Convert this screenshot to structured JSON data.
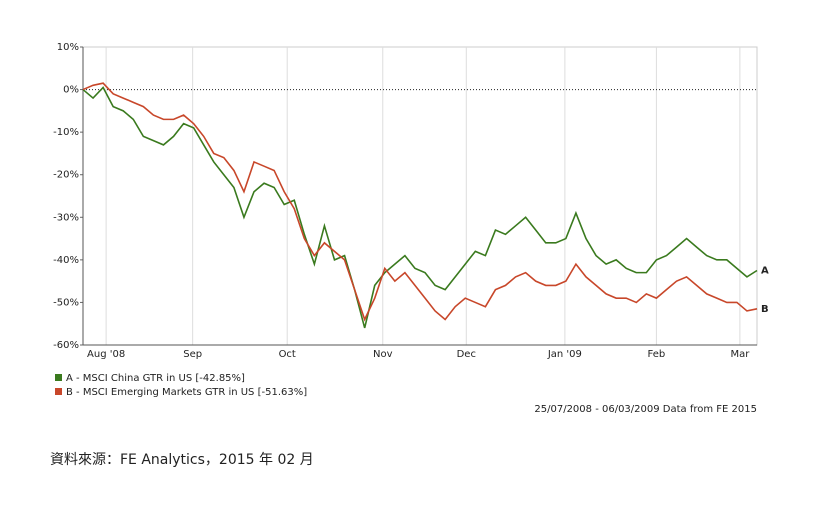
{
  "chart_data": {
    "type": "line",
    "xlim": [
      0,
      67
    ],
    "xticks": [
      {
        "value": 2.3,
        "label": "Aug '08"
      },
      {
        "value": 10.9,
        "label": "Sep"
      },
      {
        "value": 20.3,
        "label": "Oct"
      },
      {
        "value": 29.8,
        "label": "Nov"
      },
      {
        "value": 38.1,
        "label": "Dec"
      },
      {
        "value": 47.9,
        "label": "Jan '09"
      },
      {
        "value": 57.0,
        "label": "Feb"
      },
      {
        "value": 65.3,
        "label": "Mar"
      }
    ],
    "ylim": [
      -60,
      10
    ],
    "yticks": [
      {
        "value": 10,
        "label": "10%"
      },
      {
        "value": 0,
        "label": "0%"
      },
      {
        "value": -10,
        "label": "-10%"
      },
      {
        "value": -20,
        "label": "-20%"
      },
      {
        "value": -30,
        "label": "-30%"
      },
      {
        "value": -40,
        "label": "-40%"
      },
      {
        "value": -50,
        "label": "-50%"
      },
      {
        "value": -60,
        "label": "-60%"
      }
    ],
    "grid": true,
    "series": [
      {
        "name": "A - MSCI China GTR in US [-42.85%]",
        "end_label": "A",
        "color": "#3a7a1e",
        "values": [
          0,
          -2,
          0.5,
          -4,
          -5,
          -7,
          -11,
          -12,
          -13,
          -11,
          -8,
          -9,
          -13,
          -17,
          -20,
          -23,
          -30,
          -24,
          -22,
          -23,
          -27,
          -26,
          -34,
          -41,
          -32,
          -40,
          -39,
          -47,
          -56,
          -46,
          -43,
          -41,
          -39,
          -42,
          -43,
          -46,
          -47,
          -44,
          -41,
          -38,
          -39,
          -33,
          -34,
          -32,
          -30,
          -33,
          -36,
          -36,
          -35,
          -29,
          -35,
          -39,
          -41,
          -40,
          -42,
          -43,
          -43,
          -40,
          -39,
          -37,
          -35,
          -37,
          -39,
          -40,
          -40,
          -42,
          -44,
          -42.5
        ]
      },
      {
        "name": "B - MSCI Emerging Markets GTR in US [-51.63%]",
        "end_label": "B",
        "color": "#c8472a",
        "values": [
          0,
          1,
          1.5,
          -1,
          -2,
          -3,
          -4,
          -6,
          -7,
          -7,
          -6,
          -8,
          -11,
          -15,
          -16,
          -19,
          -24,
          -17,
          -18,
          -19,
          -24,
          -28,
          -35,
          -39,
          -36,
          -38,
          -40,
          -47,
          -54,
          -49,
          -42,
          -45,
          -43,
          -46,
          -49,
          -52,
          -54,
          -51,
          -49,
          -50,
          -51,
          -47,
          -46,
          -44,
          -43,
          -45,
          -46,
          -46,
          -45,
          -41,
          -44,
          -46,
          -48,
          -49,
          -49,
          -50,
          -48,
          -49,
          -47,
          -45,
          -44,
          -46,
          -48,
          -49,
          -50,
          -50,
          -52,
          -51.5
        ]
      }
    ],
    "date_range": "25/07/2008 - 06/03/2009 Data from FE 2015",
    "source": "資料來源：FE Analytics，2015 年 02 月"
  }
}
